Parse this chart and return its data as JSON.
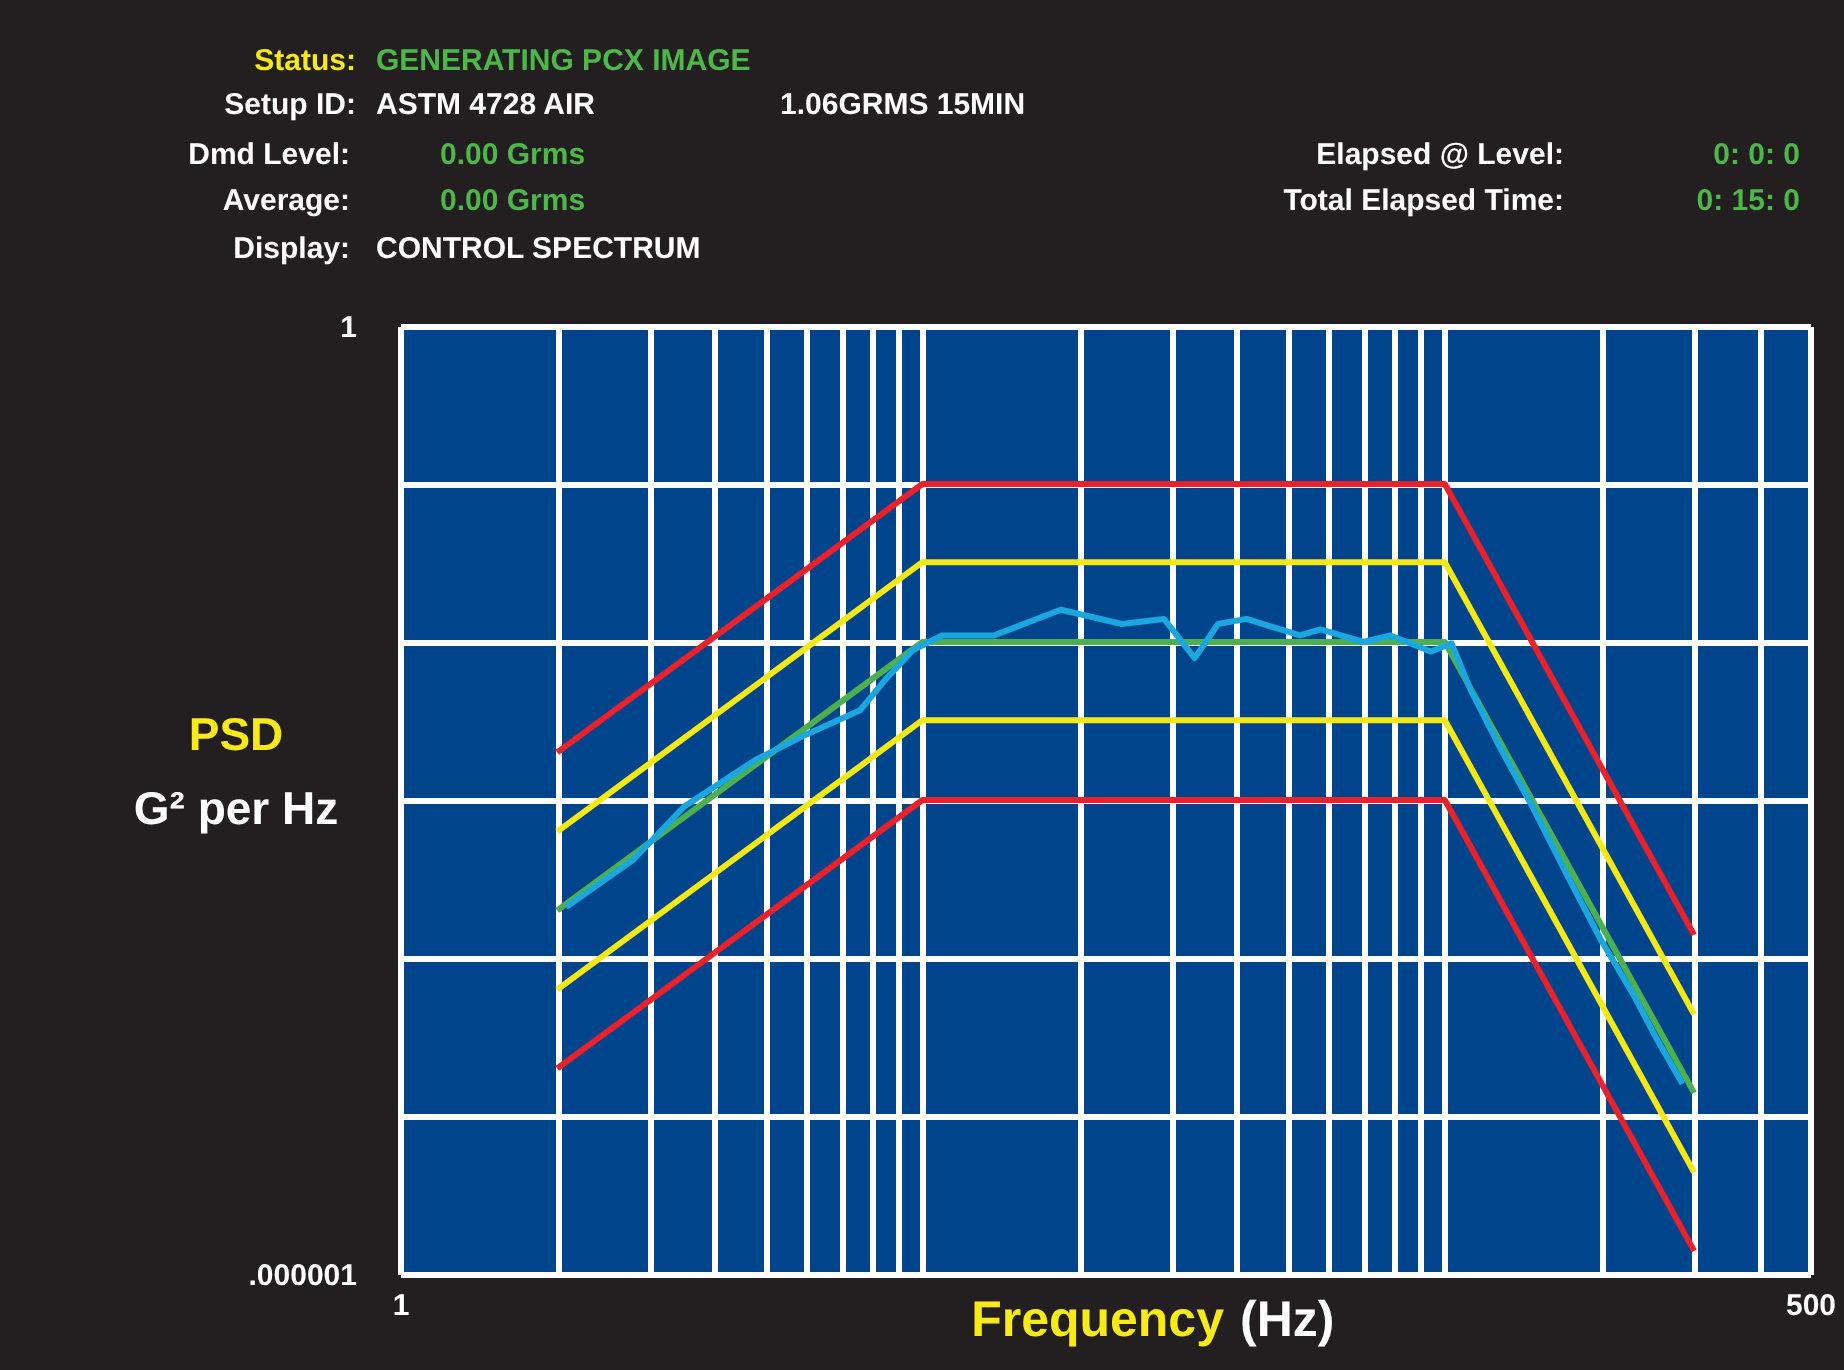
{
  "chart_data": {
    "type": "line",
    "annotations": [
      "Status:",
      "GENERATING PCX IMAGE",
      "Setup ID:",
      "ASTM 4728 AIR",
      "1.06GRMS 15MIN",
      "Dmd Level:",
      "0.00 Grms",
      "Average:",
      "0.00 Grms",
      "Display:",
      "CONTROL SPECTRUM",
      "Elapsed @ Level:",
      "0:   0:   0",
      "Total Elapsed Time:",
      "0: 15:  0"
    ],
    "ylabel": "PSD\nG² per Hz",
    "xlabel": "Frequency (Hz)",
    "log": "xy",
    "xlim": [
      1,
      500
    ],
    "ylim": [
      1e-06,
      1
    ],
    "xticks": [
      1,
      {
        "value": 2,
        "label": null
      },
      {
        "value": 3,
        "label": null
      },
      {
        "value": 4,
        "label": null
      },
      {
        "value": 5,
        "label": null
      },
      {
        "value": 6,
        "label": null
      },
      {
        "value": 7,
        "label": null
      },
      {
        "value": 8,
        "label": null
      },
      {
        "value": 9,
        "label": null
      },
      {
        "value": 10,
        "label": null
      },
      {
        "value": 20,
        "label": null
      },
      {
        "value": 30,
        "label": null
      },
      {
        "value": 40,
        "label": null
      },
      {
        "value": 50,
        "label": null
      },
      {
        "value": 60,
        "label": null
      },
      {
        "value": 70,
        "label": null
      },
      {
        "value": 80,
        "label": null
      },
      {
        "value": 90,
        "label": null
      },
      {
        "value": 100,
        "label": null
      },
      {
        "value": 200,
        "label": null
      },
      {
        "value": 300,
        "label": null
      },
      {
        "value": 400,
        "label": null
      },
      500
    ],
    "yticks": [
      {
        "value": 1e-06,
        "label": ".000001"
      },
      {
        "value": 1e-05,
        "label": null
      },
      {
        "value": 0.0001,
        "label": null
      },
      {
        "value": 0.001,
        "label": null
      },
      {
        "value": 0.01,
        "label": null
      },
      {
        "value": 0.1,
        "label": null
      },
      1
    ],
    "grid": true,
    "line_style": "solid",
    "marker": "none",
    "series": [
      {
        "color": "#e8212b",
        "x": [
          2,
          10,
          100,
          300
        ],
        "values": [
          0.002,
          0.1,
          0.1,
          0.00014
        ]
      },
      {
        "color": "#f5e915",
        "x": [
          2,
          10,
          100,
          300
        ],
        "values": [
          0.00063,
          0.032,
          0.032,
          4.4e-05
        ]
      },
      {
        "color": "#4caf50",
        "x": [
          2,
          10,
          100,
          300
        ],
        "values": [
          0.0002,
          0.01,
          0.01,
          1.4e-05
        ]
      },
      {
        "color": "#f5e915",
        "x": [
          2,
          10,
          100,
          300
        ],
        "values": [
          6.3e-05,
          0.0032,
          0.0032,
          4.4e-06
        ]
      },
      {
        "color": "#e8212b",
        "x": [
          2,
          10,
          100,
          300
        ],
        "values": [
          2e-05,
          0.001,
          0.001,
          1.4e-06
        ]
      },
      {
        "color": "#1aa7e0",
        "x": [
          2.08,
          2.8,
          3.5,
          4.8,
          6,
          7.6,
          8.5,
          9.6,
          10.9,
          13.7,
          18.4,
          24.1,
          29,
          33.2,
          36.8,
          41.7,
          52.8,
          57.8,
          69.8,
          78.7,
          94,
          103,
          112,
          127,
          147,
          171,
          199,
          230,
          254,
          285
        ],
        "values": [
          0.00021,
          0.00042,
          0.00091,
          0.0018,
          0.0026,
          0.0037,
          0.0058,
          0.0089,
          0.011,
          0.011,
          0.016,
          0.013,
          0.014,
          0.0079,
          0.013,
          0.014,
          0.011,
          0.012,
          0.01,
          0.011,
          0.0087,
          0.0098,
          0.005,
          0.0022,
          0.00091,
          0.00034,
          0.00013,
          5.8e-05,
          3.1e-05,
          1.6e-05
        ]
      }
    ]
  }
}
